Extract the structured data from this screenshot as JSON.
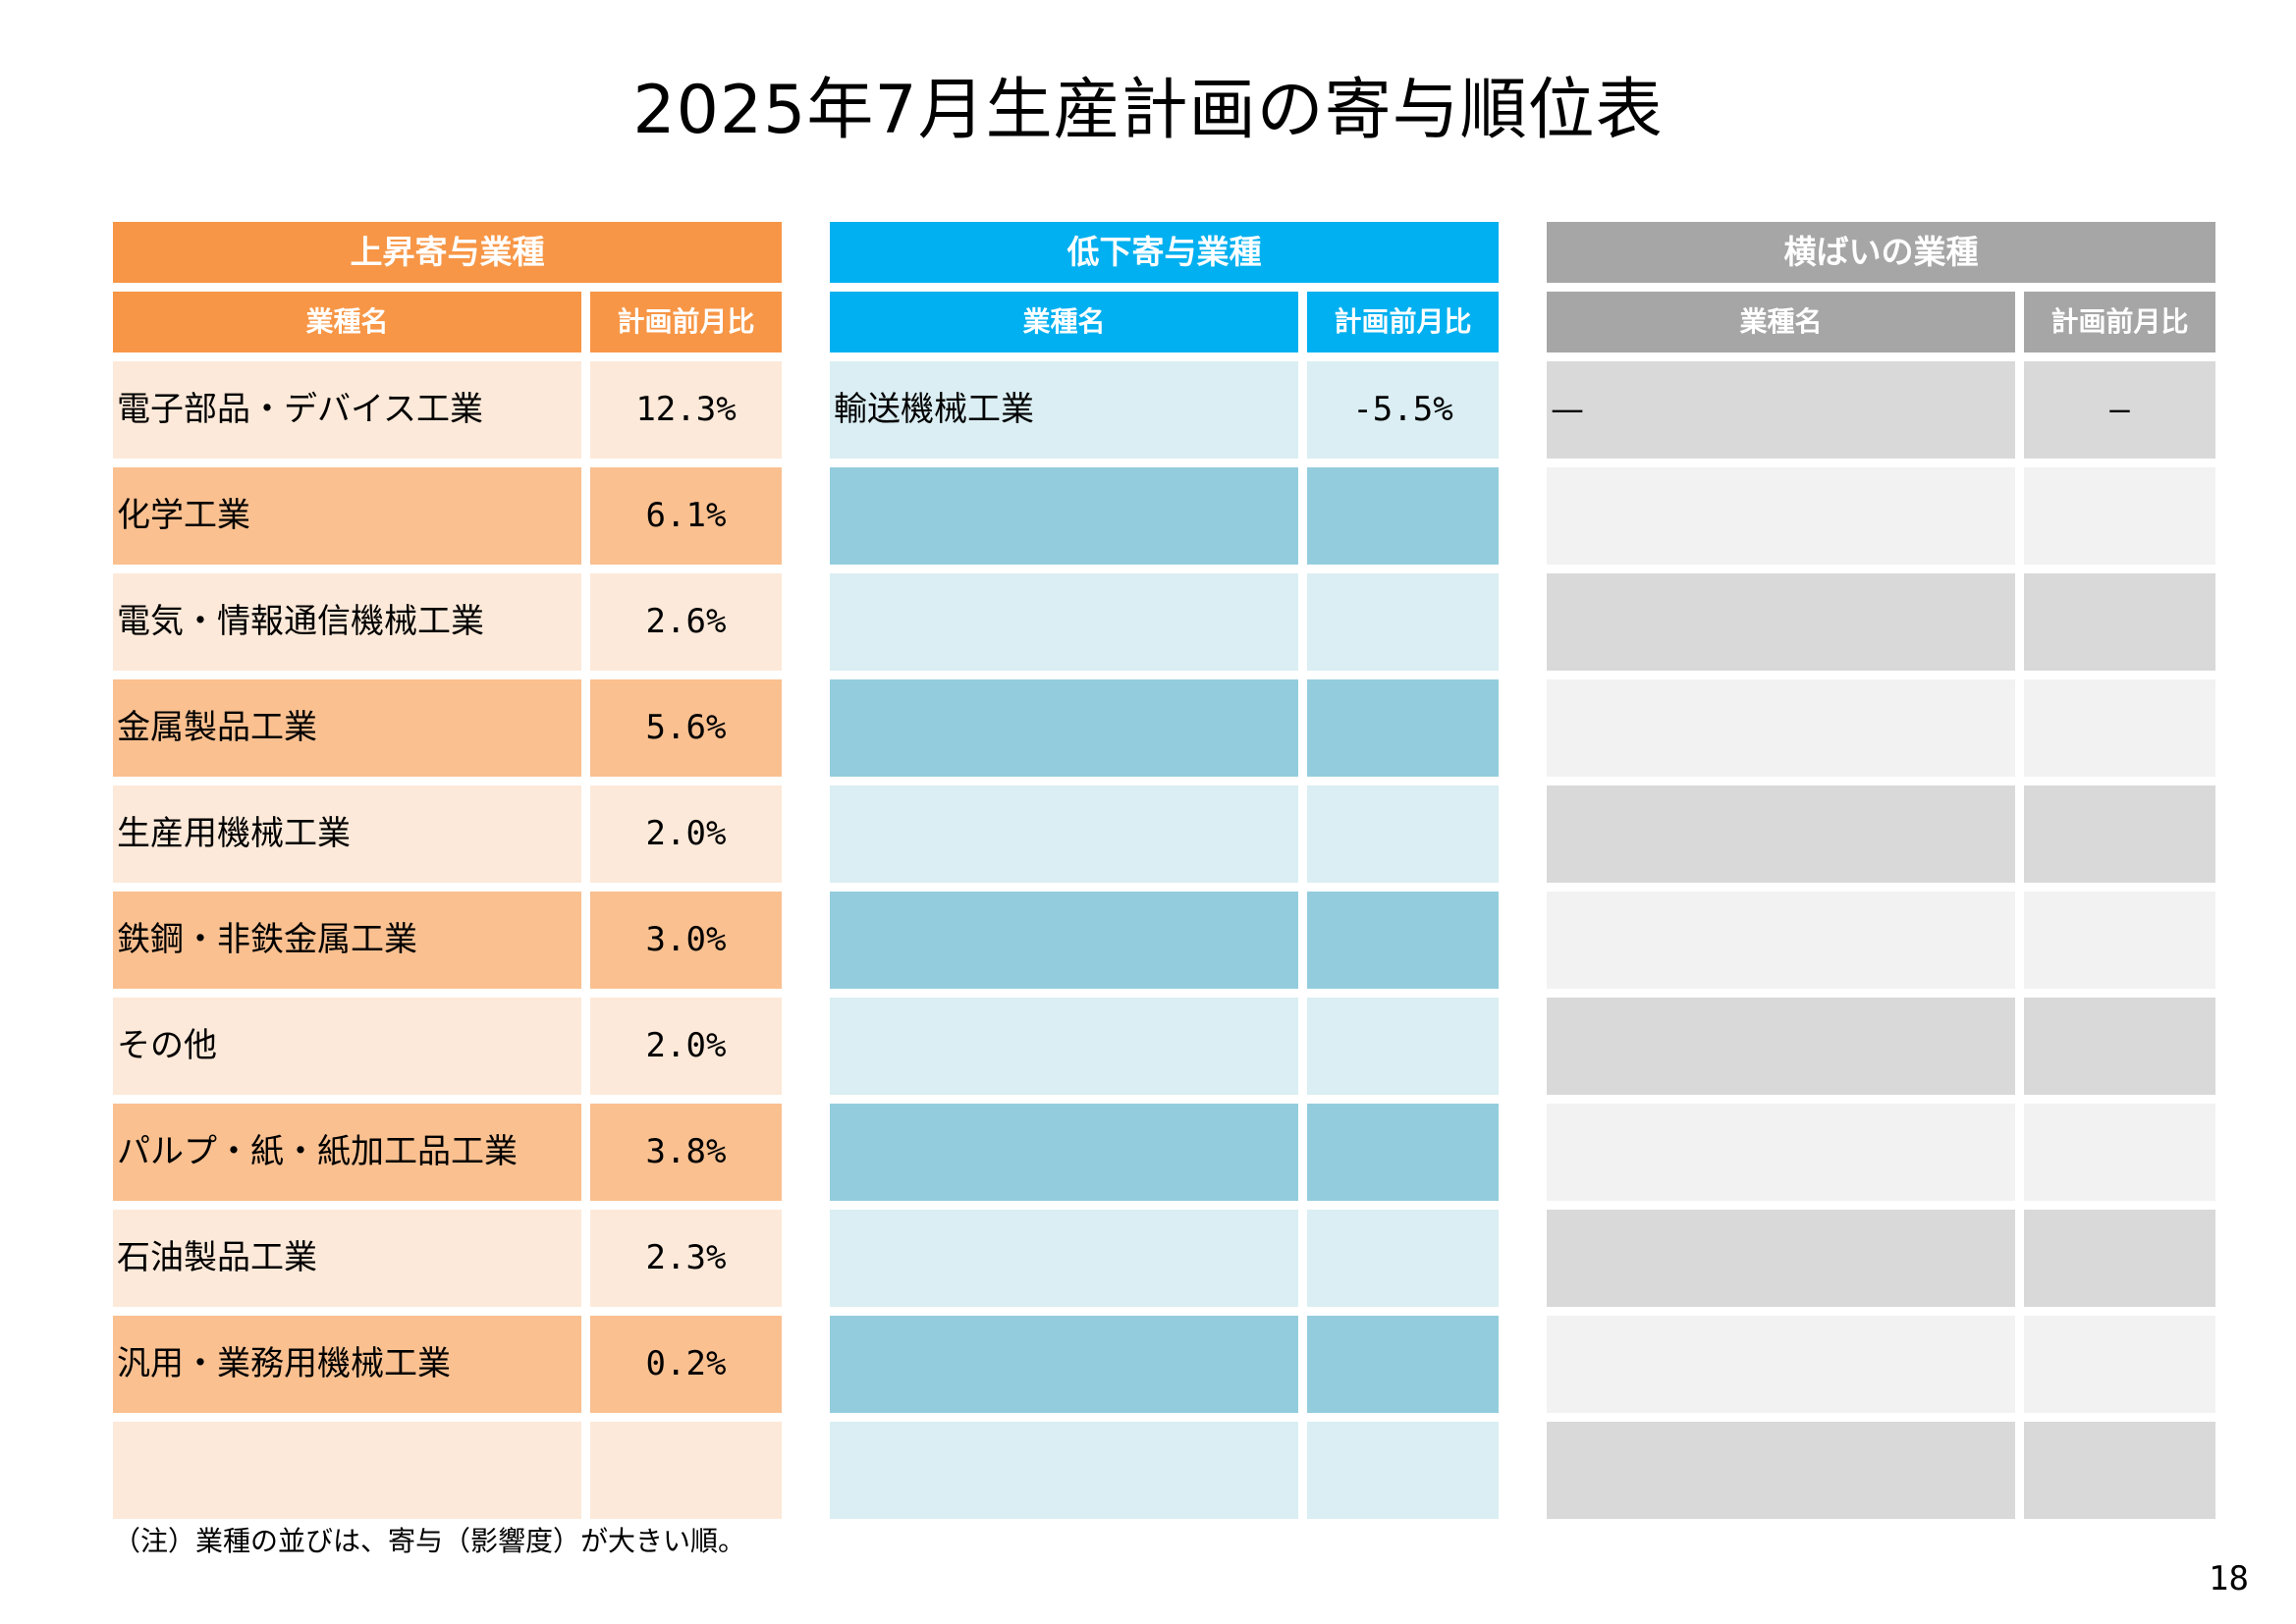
{
  "title": "2025年7月生産計画の寄与順位表",
  "colors": {
    "rise_header": "#F79646",
    "rise_row_light": "#FDE9D9",
    "rise_row_dark": "#FAC090",
    "fall_header": "#00B0F0",
    "fall_row_light": "#DAEEF3",
    "fall_row_dark": "#93CDDD",
    "flat_header": "#A6A6A6",
    "flat_row_dark": "#D9D9D9",
    "flat_row_light": "#F2F2F2"
  },
  "panels": [
    {
      "id": "rise",
      "header": "上昇寄与業種",
      "col_name": "業種名",
      "col_value": "計画前月比",
      "rows": [
        {
          "name": "電子部品・デバイス工業",
          "value": "12.3%"
        },
        {
          "name": "化学工業",
          "value": "6.1%"
        },
        {
          "name": "電気・情報通信機械工業",
          "value": "2.6%"
        },
        {
          "name": "金属製品工業",
          "value": "5.6%"
        },
        {
          "name": "生産用機械工業",
          "value": "2.0%"
        },
        {
          "name": "鉄鋼・非鉄金属工業",
          "value": "3.0%"
        },
        {
          "name": "その他",
          "value": "2.0%"
        },
        {
          "name": "パルプ・紙・紙加工品工業",
          "value": "3.8%"
        },
        {
          "name": "石油製品工業",
          "value": "2.3%"
        },
        {
          "name": "汎用・業務用機械工業",
          "value": "0.2%"
        },
        {
          "name": "",
          "value": ""
        }
      ]
    },
    {
      "id": "fall",
      "header": "低下寄与業種",
      "col_name": "業種名",
      "col_value": "計画前月比",
      "rows": [
        {
          "name": "輸送機械工業",
          "value": "-5.5%"
        },
        {
          "name": "",
          "value": ""
        },
        {
          "name": "",
          "value": ""
        },
        {
          "name": "",
          "value": ""
        },
        {
          "name": "",
          "value": ""
        },
        {
          "name": "",
          "value": ""
        },
        {
          "name": "",
          "value": ""
        },
        {
          "name": "",
          "value": ""
        },
        {
          "name": "",
          "value": ""
        },
        {
          "name": "",
          "value": ""
        },
        {
          "name": "",
          "value": ""
        }
      ]
    },
    {
      "id": "flat",
      "header": "横ばいの業種",
      "col_name": "業種名",
      "col_value": "計画前月比",
      "rows": [
        {
          "name": "—",
          "value": "—"
        },
        {
          "name": "",
          "value": ""
        },
        {
          "name": "",
          "value": ""
        },
        {
          "name": "",
          "value": ""
        },
        {
          "name": "",
          "value": ""
        },
        {
          "name": "",
          "value": ""
        },
        {
          "name": "",
          "value": ""
        },
        {
          "name": "",
          "value": ""
        },
        {
          "name": "",
          "value": ""
        },
        {
          "name": "",
          "value": ""
        },
        {
          "name": "",
          "value": ""
        }
      ]
    }
  ],
  "note": "（注）業種の並びは、寄与（影響度）が大きい順。",
  "page_number": "18"
}
